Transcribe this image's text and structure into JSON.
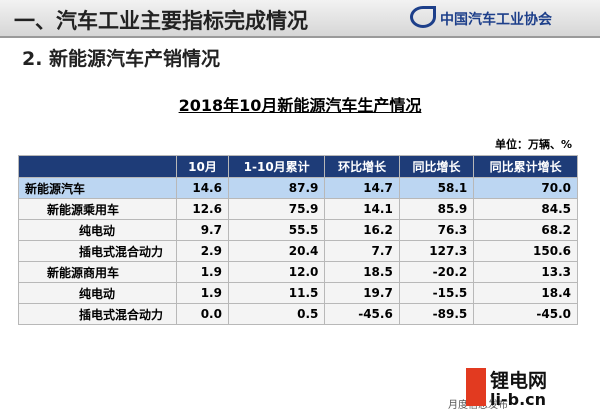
{
  "header": {
    "title": "一、汽车工业主要指标完成情况",
    "logo": "中国汽车工业协会"
  },
  "section": "2. 新能源汽车产销情况",
  "table": {
    "title": "2018年10月新能源汽车生产情况",
    "unit": "单位：万辆、%",
    "columns": [
      "10月",
      "1-10月累计",
      "环比增长",
      "同比增长",
      "同比累计增长"
    ],
    "rows": [
      [
        "新能源汽车",
        "14.6",
        "87.9",
        "14.7",
        "58.1",
        "70.0"
      ],
      [
        "新能源乘用车",
        "12.6",
        "75.9",
        "14.1",
        "85.9",
        "84.5"
      ],
      [
        "纯电动",
        "9.7",
        "55.5",
        "16.2",
        "76.3",
        "68.2"
      ],
      [
        "插电式混合动力",
        "2.9",
        "20.4",
        "7.7",
        "127.3",
        "150.6"
      ],
      [
        "新能源商用车",
        "1.9",
        "12.0",
        "18.5",
        "-20.2",
        "13.3"
      ],
      [
        "纯电动",
        "1.9",
        "11.5",
        "19.7",
        "-15.5",
        "18.4"
      ],
      [
        "插电式混合动力",
        "0.0",
        "0.5",
        "-45.6",
        "-89.5",
        "-45.0"
      ]
    ]
  },
  "footer": "月度信息发布",
  "watermark": {
    "name": "锂电网",
    "url": "li-b.cn"
  }
}
